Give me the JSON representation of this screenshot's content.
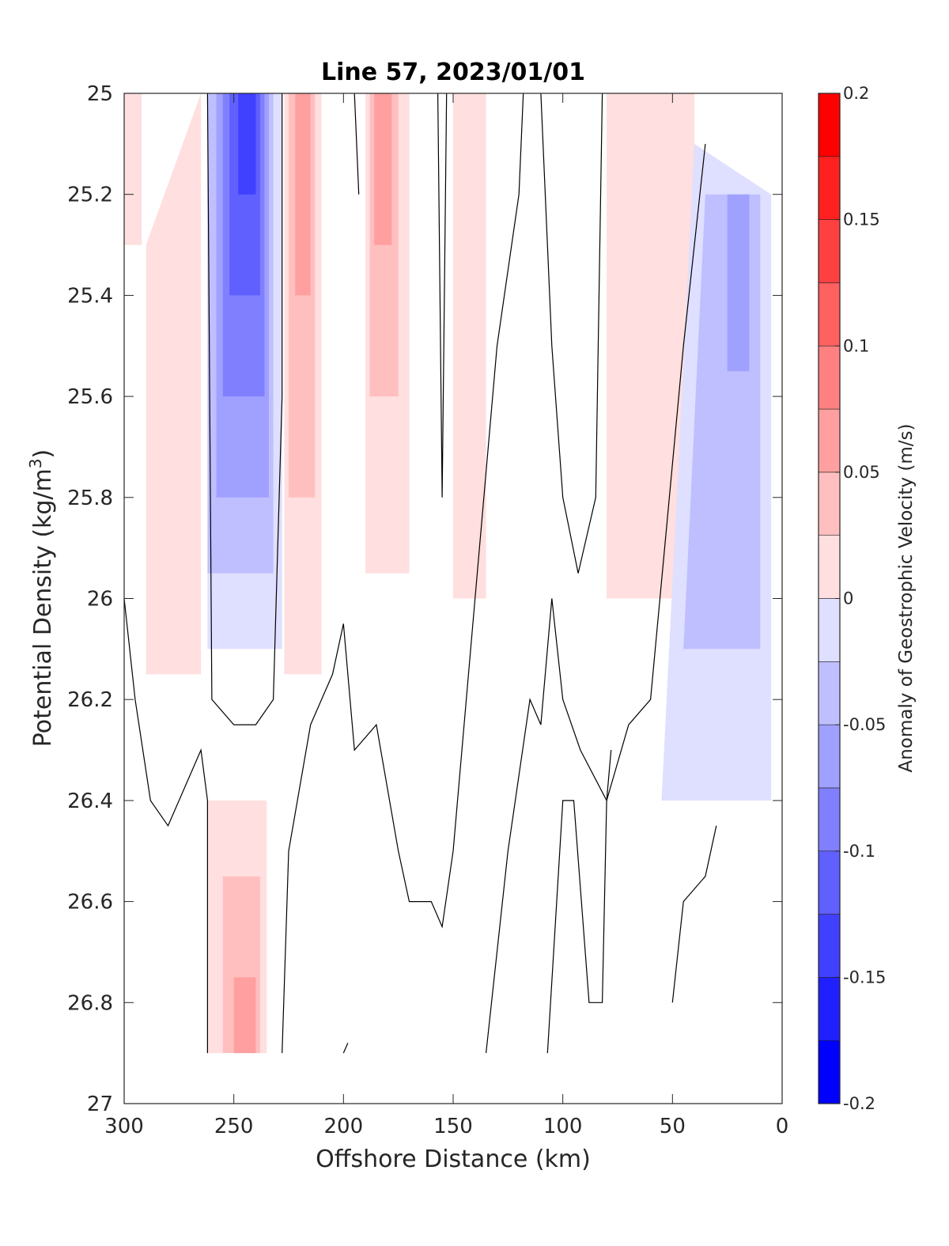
{
  "chart_data": {
    "type": "contour",
    "title": "Line 57, 2023/01/01",
    "xlabel": "Offshore Distance (km)",
    "ylabel": {
      "main": "Potential Density (kg/m",
      "sup": "3",
      "end": ")"
    },
    "xlim": [
      300,
      0
    ],
    "ylim": [
      25,
      27
    ],
    "x_reversed": true,
    "y_reversed": true,
    "xticks": [
      300,
      250,
      200,
      150,
      100,
      50,
      0
    ],
    "xtick_labels": [
      "300",
      "250",
      "200",
      "150",
      "100",
      "50",
      "0"
    ],
    "yticks": [
      25,
      25.2,
      25.4,
      25.6,
      25.8,
      26,
      26.2,
      26.4,
      26.6,
      26.8,
      27
    ],
    "ytick_labels": [
      "25",
      "25.2",
      "25.4",
      "25.6",
      "25.8",
      "26",
      "26.2",
      "26.4",
      "26.6",
      "26.8",
      "27"
    ],
    "colorbar": {
      "label": "Anomaly of Geostrophic Velocity (m/s)",
      "range": [
        -0.2,
        0.2
      ],
      "levels": [
        -0.2,
        -0.175,
        -0.15,
        -0.125,
        -0.1,
        -0.075,
        -0.05,
        -0.025,
        0,
        0.025,
        0.05,
        0.075,
        0.1,
        0.125,
        0.15,
        0.175,
        0.2
      ],
      "colors": [
        "#0000ff",
        "#2020ff",
        "#4040ff",
        "#6060ff",
        "#8080ff",
        "#a0a0ff",
        "#bfbfff",
        "#dfdfff",
        "#ffffff",
        "#ffdfdf",
        "#ffbfbf",
        "#ff9f9f",
        "#ff8080",
        "#ff6060",
        "#ff4040",
        "#ff2020",
        "#ff0000"
      ],
      "ticks": [
        -0.2,
        -0.15,
        -0.1,
        -0.05,
        0,
        0.05,
        0.1,
        0.15,
        0.2
      ],
      "tick_labels": [
        "-0.2",
        "-0.15",
        "-0.1",
        "-0.05",
        "0",
        "0.05",
        "0.1",
        "0.15",
        "0.2"
      ]
    },
    "anomaly_regions": [
      {
        "level": -0.025,
        "polygon": [
          [
            262,
            25
          ],
          [
            228,
            25
          ],
          [
            228,
            26.1
          ],
          [
            262,
            26.1
          ]
        ]
      },
      {
        "level": -0.05,
        "polygon": [
          [
            262,
            25
          ],
          [
            232,
            25
          ],
          [
            232,
            25.95
          ],
          [
            262,
            25.95
          ]
        ]
      },
      {
        "level": -0.075,
        "polygon": [
          [
            258,
            25
          ],
          [
            234,
            25
          ],
          [
            234,
            25.8
          ],
          [
            258,
            25.8
          ]
        ]
      },
      {
        "level": -0.1,
        "polygon": [
          [
            255,
            25
          ],
          [
            236,
            25
          ],
          [
            236,
            25.6
          ],
          [
            255,
            25.6
          ]
        ]
      },
      {
        "level": -0.125,
        "polygon": [
          [
            252,
            25
          ],
          [
            238,
            25
          ],
          [
            238,
            25.4
          ],
          [
            252,
            25.4
          ]
        ]
      },
      {
        "level": -0.15,
        "polygon": [
          [
            248,
            25
          ],
          [
            240,
            25
          ],
          [
            240,
            25.2
          ],
          [
            248,
            25.2
          ]
        ]
      },
      {
        "level": 0.025,
        "polygon": [
          [
            300,
            25
          ],
          [
            292,
            25
          ],
          [
            292,
            25.3
          ],
          [
            300,
            25.3
          ]
        ]
      },
      {
        "level": 0.025,
        "polygon": [
          [
            290,
            25.3
          ],
          [
            265,
            25
          ],
          [
            265,
            26.15
          ],
          [
            290,
            26.15
          ]
        ]
      },
      {
        "level": 0.025,
        "polygon": [
          [
            227,
            25
          ],
          [
            210,
            25
          ],
          [
            210,
            26.15
          ],
          [
            227,
            26.15
          ]
        ]
      },
      {
        "level": 0.05,
        "polygon": [
          [
            225,
            25
          ],
          [
            213,
            25
          ],
          [
            213,
            25.8
          ],
          [
            225,
            25.8
          ]
        ]
      },
      {
        "level": 0.075,
        "polygon": [
          [
            222,
            25
          ],
          [
            215,
            25
          ],
          [
            215,
            25.4
          ],
          [
            222,
            25.4
          ]
        ]
      },
      {
        "level": 0.025,
        "polygon": [
          [
            190,
            25
          ],
          [
            170,
            25
          ],
          [
            170,
            25.95
          ],
          [
            190,
            25.95
          ]
        ]
      },
      {
        "level": 0.05,
        "polygon": [
          [
            188,
            25
          ],
          [
            175,
            25
          ],
          [
            175,
            25.6
          ],
          [
            188,
            25.6
          ]
        ]
      },
      {
        "level": 0.075,
        "polygon": [
          [
            186,
            25
          ],
          [
            178,
            25
          ],
          [
            178,
            25.3
          ],
          [
            186,
            25.3
          ]
        ]
      },
      {
        "level": 0.025,
        "polygon": [
          [
            150,
            25
          ],
          [
            135,
            25
          ],
          [
            135,
            26
          ],
          [
            150,
            26
          ]
        ]
      },
      {
        "level": 0.025,
        "polygon": [
          [
            80,
            25
          ],
          [
            40,
            25
          ],
          [
            40,
            26.0
          ],
          [
            80,
            26.0
          ]
        ]
      },
      {
        "level": -0.025,
        "polygon": [
          [
            40,
            25.1
          ],
          [
            5,
            25.2
          ],
          [
            5,
            26.4
          ],
          [
            55,
            26.4
          ]
        ]
      },
      {
        "level": -0.05,
        "polygon": [
          [
            35,
            25.2
          ],
          [
            10,
            25.2
          ],
          [
            10,
            26.1
          ],
          [
            45,
            26.1
          ]
        ]
      },
      {
        "level": -0.075,
        "polygon": [
          [
            25,
            25.2
          ],
          [
            15,
            25.2
          ],
          [
            15,
            25.55
          ],
          [
            25,
            25.55
          ]
        ]
      },
      {
        "level": 0.025,
        "polygon": [
          [
            262,
            26.4
          ],
          [
            235,
            26.4
          ],
          [
            235,
            26.9
          ],
          [
            262,
            26.9
          ]
        ]
      },
      {
        "level": 0.05,
        "polygon": [
          [
            255,
            26.55
          ],
          [
            238,
            26.55
          ],
          [
            238,
            26.9
          ],
          [
            255,
            26.9
          ]
        ]
      },
      {
        "level": 0.075,
        "polygon": [
          [
            250,
            26.75
          ],
          [
            240,
            26.75
          ],
          [
            240,
            26.9
          ],
          [
            250,
            26.9
          ]
        ]
      }
    ],
    "zero_contours": [
      [
        [
          300,
          26
        ],
        [
          295,
          26.2
        ],
        [
          288,
          26.4
        ],
        [
          280,
          26.45
        ],
        [
          265,
          26.3
        ],
        [
          262,
          26.4
        ],
        [
          262,
          26.9
        ]
      ],
      [
        [
          262,
          25
        ],
        [
          260,
          26.2
        ],
        [
          250,
          26.25
        ],
        [
          240,
          26.25
        ],
        [
          232,
          26.2
        ],
        [
          228,
          25.6
        ],
        [
          228,
          25
        ]
      ],
      [
        [
          228,
          26.9
        ],
        [
          225,
          26.5
        ],
        [
          215,
          26.25
        ],
        [
          205,
          26.15
        ],
        [
          200,
          26.05
        ],
        [
          195,
          26.3
        ],
        [
          185,
          26.25
        ],
        [
          175,
          26.5
        ],
        [
          170,
          26.6
        ],
        [
          160,
          26.6
        ],
        [
          155,
          26.65
        ],
        [
          150,
          26.5
        ],
        [
          140,
          26.0
        ],
        [
          130,
          25.5
        ],
        [
          120,
          25.2
        ],
        [
          118,
          25
        ]
      ],
      [
        [
          157,
          25
        ],
        [
          155,
          25.8
        ],
        [
          153,
          25
        ]
      ],
      [
        [
          110,
          25
        ],
        [
          105,
          25.5
        ],
        [
          100,
          25.8
        ],
        [
          93,
          25.95
        ],
        [
          85,
          25.8
        ],
        [
          82,
          25
        ]
      ],
      [
        [
          135,
          26.9
        ],
        [
          125,
          26.5
        ],
        [
          115,
          26.2
        ],
        [
          110,
          26.25
        ],
        [
          105,
          26.0
        ],
        [
          100,
          26.2
        ],
        [
          92,
          26.3
        ],
        [
          80,
          26.4
        ],
        [
          70,
          26.25
        ],
        [
          60,
          26.2
        ],
        [
          45,
          25.5
        ],
        [
          35,
          25.1
        ]
      ],
      [
        [
          107,
          26.9
        ],
        [
          100,
          26.4
        ],
        [
          95,
          26.4
        ],
        [
          88,
          26.8
        ],
        [
          82,
          26.8
        ],
        [
          80,
          26.4
        ],
        [
          78,
          26.3
        ]
      ],
      [
        [
          50,
          26.8
        ],
        [
          45,
          26.6
        ],
        [
          35,
          26.55
        ],
        [
          30,
          26.45
        ]
      ],
      [
        [
          195,
          25
        ],
        [
          193,
          25.2
        ]
      ],
      [
        [
          200,
          26.9
        ],
        [
          198,
          26.88
        ]
      ]
    ]
  }
}
